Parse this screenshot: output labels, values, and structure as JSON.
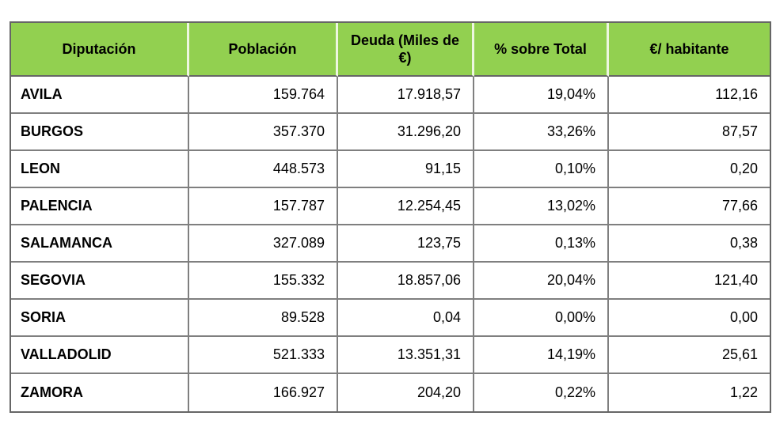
{
  "chart_data": {
    "type": "table",
    "columns": [
      "Diputación",
      "Población",
      "Deuda (Miles de €)",
      "% sobre Total",
      "€/ habitante"
    ],
    "rows": [
      [
        "AVILA",
        "159.764",
        "17.918,57",
        "19,04%",
        "112,16"
      ],
      [
        "BURGOS",
        "357.370",
        "31.296,20",
        "33,26%",
        "87,57"
      ],
      [
        "LEON",
        "448.573",
        "91,15",
        "0,10%",
        "0,20"
      ],
      [
        "PALENCIA",
        "157.787",
        "12.254,45",
        "13,02%",
        "77,66"
      ],
      [
        "SALAMANCA",
        "327.089",
        "123,75",
        "0,13%",
        "0,38"
      ],
      [
        "SEGOVIA",
        "155.332",
        "18.857,06",
        "20,04%",
        "121,40"
      ],
      [
        "SORIA",
        "89.528",
        "0,04",
        "0,00%",
        "0,00"
      ],
      [
        "VALLADOLID",
        "521.333",
        "13.351,31",
        "14,19%",
        "25,61"
      ],
      [
        "ZAMORA",
        "166.927",
        "204,20",
        "0,22%",
        "1,22"
      ]
    ],
    "layout": {
      "grid": true,
      "header_row": true,
      "first_column_bold": true,
      "numeric_alignment": "right"
    }
  },
  "colors": {
    "header_bg": "#92d050",
    "header_divider": "#edf6e0",
    "outer_border": "#666666",
    "inner_border": "#7f7f7f",
    "text": "#000000",
    "row_bg": "#ffffff"
  },
  "column_keys": [
    "diputacion",
    "poblacion",
    "deuda-miles-eur",
    "pct-sobre-total",
    "eur-por-habitante"
  ]
}
